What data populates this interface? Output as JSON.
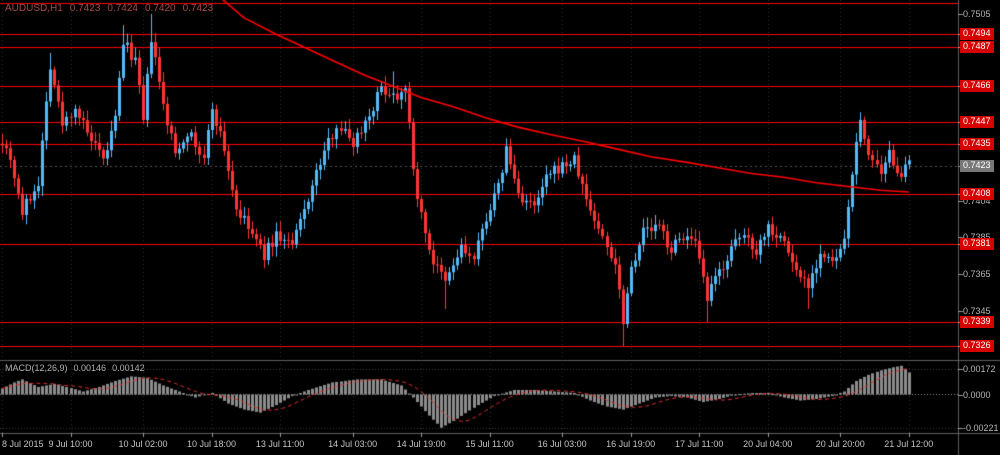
{
  "header": {
    "symbol_period": "AUDUSD,H1",
    "ohlc": [
      "0.7423",
      "0.7424",
      "0.7420",
      "0.7423"
    ]
  },
  "macd_panel": {
    "title": "MACD(12,26,9)",
    "values": [
      "0.00146",
      "0.00142"
    ]
  },
  "chart_data": {
    "type": "candlestick",
    "title": "AUDUSD,H1",
    "y_range": {
      "top": 0.75125,
      "bottom": 0.73185
    },
    "y_ticks": [
      0.7505,
      0.7404,
      0.7385,
      0.7365,
      0.7345
    ],
    "current_price": 0.7423,
    "horizontal_lines": [
      {
        "price": 0.7511,
        "labeled": false
      },
      {
        "price": 0.7494,
        "labeled": true
      },
      {
        "price": 0.7487,
        "labeled": true
      },
      {
        "price": 0.7466,
        "labeled": true
      },
      {
        "price": 0.7447,
        "labeled": true
      },
      {
        "price": 0.7435,
        "labeled": true
      },
      {
        "price": 0.7408,
        "labeled": true
      },
      {
        "price": 0.7381,
        "labeled": true
      },
      {
        "price": 0.7339,
        "labeled": true
      },
      {
        "price": 0.7326,
        "labeled": true
      }
    ],
    "num_bars": 226,
    "price_path_anchors": [
      [
        0,
        0.7437
      ],
      [
        2,
        0.7428
      ],
      [
        5,
        0.7398
      ],
      [
        9,
        0.7415
      ],
      [
        12,
        0.7478
      ],
      [
        15,
        0.7445
      ],
      [
        18,
        0.7455
      ],
      [
        21,
        0.744
      ],
      [
        25,
        0.7425
      ],
      [
        28,
        0.7448
      ],
      [
        30,
        0.749
      ],
      [
        33,
        0.748
      ],
      [
        35,
        0.7447
      ],
      [
        37,
        0.7492
      ],
      [
        40,
        0.7455
      ],
      [
        43,
        0.743
      ],
      [
        46,
        0.7442
      ],
      [
        50,
        0.7426
      ],
      [
        52,
        0.7455
      ],
      [
        55,
        0.7432
      ],
      [
        58,
        0.74
      ],
      [
        62,
        0.7386
      ],
      [
        65,
        0.7375
      ],
      [
        68,
        0.7386
      ],
      [
        72,
        0.738
      ],
      [
        76,
        0.7406
      ],
      [
        79,
        0.7425
      ],
      [
        83,
        0.7446
      ],
      [
        87,
        0.7436
      ],
      [
        91,
        0.7451
      ],
      [
        94,
        0.7465
      ],
      [
        98,
        0.7461
      ],
      [
        100,
        0.7468
      ],
      [
        102,
        0.742
      ],
      [
        104,
        0.7396
      ],
      [
        107,
        0.7371
      ],
      [
        110,
        0.736
      ],
      [
        114,
        0.7379
      ],
      [
        117,
        0.7372
      ],
      [
        120,
        0.7396
      ],
      [
        123,
        0.7411
      ],
      [
        125,
        0.7432
      ],
      [
        128,
        0.7408
      ],
      [
        132,
        0.74
      ],
      [
        135,
        0.7416
      ],
      [
        138,
        0.7422
      ],
      [
        142,
        0.7426
      ],
      [
        145,
        0.7405
      ],
      [
        148,
        0.7389
      ],
      [
        152,
        0.7371
      ],
      [
        154,
        0.7341
      ],
      [
        156,
        0.7369
      ],
      [
        159,
        0.7388
      ],
      [
        163,
        0.739
      ],
      [
        166,
        0.7378
      ],
      [
        169,
        0.7386
      ],
      [
        172,
        0.738
      ],
      [
        175,
        0.7351
      ],
      [
        177,
        0.7362
      ],
      [
        181,
        0.7378
      ],
      [
        184,
        0.7386
      ],
      [
        187,
        0.7378
      ],
      [
        190,
        0.7391
      ],
      [
        194,
        0.7382
      ],
      [
        197,
        0.7366
      ],
      [
        200,
        0.736
      ],
      [
        203,
        0.7376
      ],
      [
        206,
        0.737
      ],
      [
        209,
        0.7381
      ],
      [
        211,
        0.7421
      ],
      [
        213,
        0.7446
      ],
      [
        215,
        0.7431
      ],
      [
        218,
        0.7416
      ],
      [
        220,
        0.7429
      ],
      [
        223,
        0.7419
      ],
      [
        225,
        0.7423
      ]
    ],
    "wick_overrides": [
      {
        "bar": 12,
        "high": 0.7484
      },
      {
        "bar": 30,
        "high": 0.7499
      },
      {
        "bar": 37,
        "high": 0.7505
      },
      {
        "bar": 97,
        "high": 0.7474
      },
      {
        "bar": 110,
        "low": 0.7346
      },
      {
        "bar": 125,
        "high": 0.7438
      },
      {
        "bar": 154,
        "low": 0.7326
      },
      {
        "bar": 175,
        "low": 0.7339
      },
      {
        "bar": 200,
        "low": 0.7346
      },
      {
        "bar": 213,
        "high": 0.7452
      }
    ],
    "ma_line_points": [
      [
        53,
        0.7516
      ],
      [
        60,
        0.7503
      ],
      [
        68,
        0.7494
      ],
      [
        75,
        0.7487
      ],
      [
        83,
        0.7479
      ],
      [
        90,
        0.7472
      ],
      [
        97,
        0.7466
      ],
      [
        104,
        0.746
      ],
      [
        112,
        0.7455
      ],
      [
        120,
        0.7449
      ],
      [
        128,
        0.7444
      ],
      [
        136,
        0.744
      ],
      [
        145,
        0.7436
      ],
      [
        153,
        0.7432
      ],
      [
        161,
        0.7428
      ],
      [
        170,
        0.7425
      ],
      [
        178,
        0.7422
      ],
      [
        186,
        0.7419
      ],
      [
        194,
        0.7417
      ],
      [
        202,
        0.7414
      ],
      [
        210,
        0.7412
      ],
      [
        218,
        0.741
      ],
      [
        225,
        0.7409
      ]
    ],
    "x_tick_bars": [
      0,
      17,
      35,
      52,
      69,
      87,
      104,
      121,
      139,
      156,
      173,
      190,
      208,
      225
    ],
    "x_labels": [
      "8 Jul 2015",
      "9 Jul 10:00",
      "10 Jul 02:00",
      "10 Jul 18:00",
      "13 Jul 11:00",
      "14 Jul 03:00",
      "14 Jul 19:00",
      "15 Jul 11:00",
      "16 Jul 03:00",
      "16 Jul 19:00",
      "17 Jul 11:00",
      "20 Jul 04:00",
      "20 Jul 20:00",
      "21 Jul 12:00"
    ],
    "macd": {
      "label": "MACD(12,26,9)",
      "main_last": 0.00146,
      "signal_last": 0.00142,
      "axis_max": 0.00172,
      "axis_min": -0.00221,
      "axis_labels": [
        "0.00172",
        "0.0000",
        "-0.00221"
      ],
      "signal_period": 9,
      "path_anchors": [
        [
          0,
          0.0004
        ],
        [
          3,
          0.0008
        ],
        [
          5,
          0.001
        ],
        [
          9,
          0.0005
        ],
        [
          13,
          0.0007
        ],
        [
          16,
          0.0005
        ],
        [
          20,
          0.0002
        ],
        [
          24,
          0.0005
        ],
        [
          28,
          0.0009
        ],
        [
          32,
          0.0012
        ],
        [
          36,
          0.0011
        ],
        [
          40,
          0.0006
        ],
        [
          44,
          0.0002
        ],
        [
          48,
          -0.0002
        ],
        [
          52,
          0.0001
        ],
        [
          56,
          -0.0006
        ],
        [
          60,
          -0.001
        ],
        [
          64,
          -0.0012
        ],
        [
          68,
          -0.0007
        ],
        [
          72,
          -0.0001
        ],
        [
          76,
          0.0003
        ],
        [
          82,
          0.0008
        ],
        [
          88,
          0.001
        ],
        [
          94,
          0.001
        ],
        [
          99,
          0.0006
        ],
        [
          102,
          -0.0002
        ],
        [
          106,
          -0.0014
        ],
        [
          109,
          -0.0022
        ],
        [
          113,
          -0.0016
        ],
        [
          118,
          -0.0007
        ],
        [
          122,
          -0.0001
        ],
        [
          127,
          0.0003
        ],
        [
          132,
          0.0003
        ],
        [
          137,
          0.0002
        ],
        [
          142,
          0.0001
        ],
        [
          146,
          -0.0004
        ],
        [
          150,
          -0.0008
        ],
        [
          154,
          -0.001
        ],
        [
          158,
          -0.0006
        ],
        [
          162,
          -0.0002
        ],
        [
          166,
          -0.0001
        ],
        [
          170,
          -0.0002
        ],
        [
          174,
          -0.0005
        ],
        [
          178,
          -0.0003
        ],
        [
          182,
          0.0
        ],
        [
          186,
          0.0001
        ],
        [
          190,
          0.0001
        ],
        [
          194,
          -0.0002
        ],
        [
          198,
          -0.0004
        ],
        [
          202,
          -0.0003
        ],
        [
          206,
          -0.0001
        ],
        [
          209,
          0.0002
        ],
        [
          212,
          0.0009
        ],
        [
          215,
          0.0013
        ],
        [
          218,
          0.0016
        ],
        [
          221,
          0.0018
        ],
        [
          223,
          0.0019
        ],
        [
          225,
          0.00146
        ]
      ]
    },
    "colors": {
      "background": "#000000",
      "bull": "#55baf7",
      "bear": "#ff3434",
      "level_line": "#ff0000",
      "ma_line": "#ff0000",
      "grid": "#2d2d2d",
      "histogram": "#8c8c8c",
      "signal_line": "#e03030",
      "border": "#5f5f5f",
      "badge_bg": "#d60000",
      "current_badge_bg": "#787878"
    }
  }
}
